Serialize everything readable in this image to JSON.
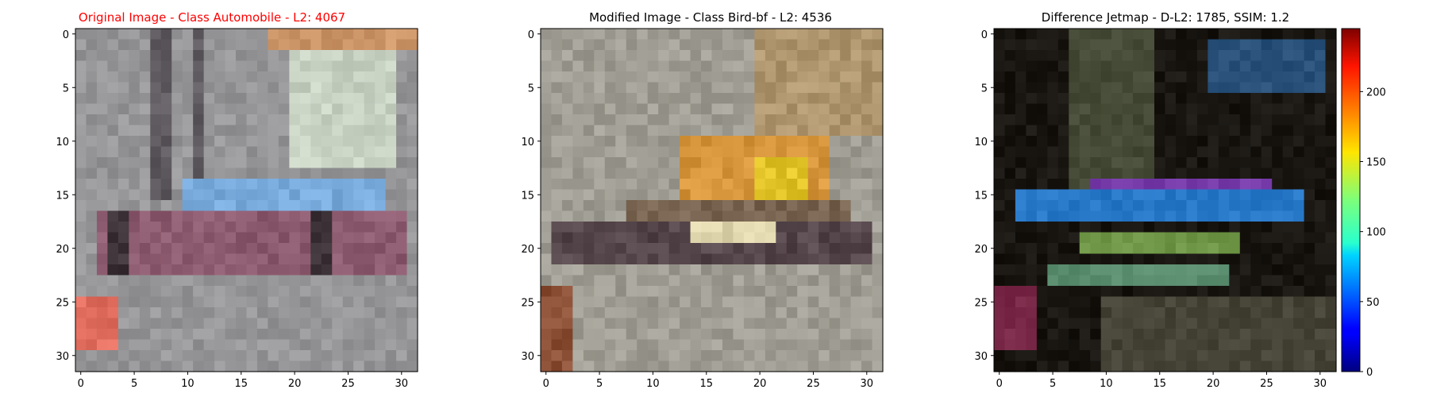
{
  "figure": {
    "colors": {
      "title_original": "#ff0000",
      "title_default": "#000000",
      "axis": "#000000",
      "background": "#ffffff"
    }
  },
  "chart_data": [
    {
      "type": "heatmap",
      "title": "Original Image - Class Automobile - L2: 4067",
      "title_color": "#ff0000",
      "x_ticks": [
        0,
        5,
        10,
        15,
        20,
        25,
        30
      ],
      "y_ticks": [
        0,
        5,
        10,
        15,
        20,
        25,
        30
      ],
      "xlim": [
        -0.5,
        31.5
      ],
      "ylim": [
        31.5,
        -0.5
      ],
      "grid": false,
      "image_size": [
        32,
        32
      ],
      "content": "RGB 32x32 image"
    },
    {
      "type": "heatmap",
      "title": "Modified Image - Class Bird-bf - L2: 4536",
      "title_color": "#000000",
      "x_ticks": [
        0,
        5,
        10,
        15,
        20,
        25,
        30
      ],
      "y_ticks": [
        0,
        5,
        10,
        15,
        20,
        25,
        30
      ],
      "xlim": [
        -0.5,
        31.5
      ],
      "ylim": [
        31.5,
        -0.5
      ],
      "grid": false,
      "image_size": [
        32,
        32
      ],
      "content": "RGB 32x32 image"
    },
    {
      "type": "heatmap",
      "title": "Difference Jetmap - D-L2: 1785, SSIM: 1.2",
      "title_color": "#000000",
      "x_ticks": [
        0,
        5,
        10,
        15,
        20,
        25,
        30
      ],
      "y_ticks": [
        0,
        5,
        10,
        15,
        20,
        25,
        30
      ],
      "xlim": [
        -0.5,
        31.5
      ],
      "ylim": [
        31.5,
        -0.5
      ],
      "grid": false,
      "image_size": [
        32,
        32
      ],
      "colorbar": {
        "colormap": "jet",
        "range": [
          0,
          245
        ],
        "ticks": [
          0,
          50,
          100,
          150,
          200
        ]
      }
    }
  ]
}
